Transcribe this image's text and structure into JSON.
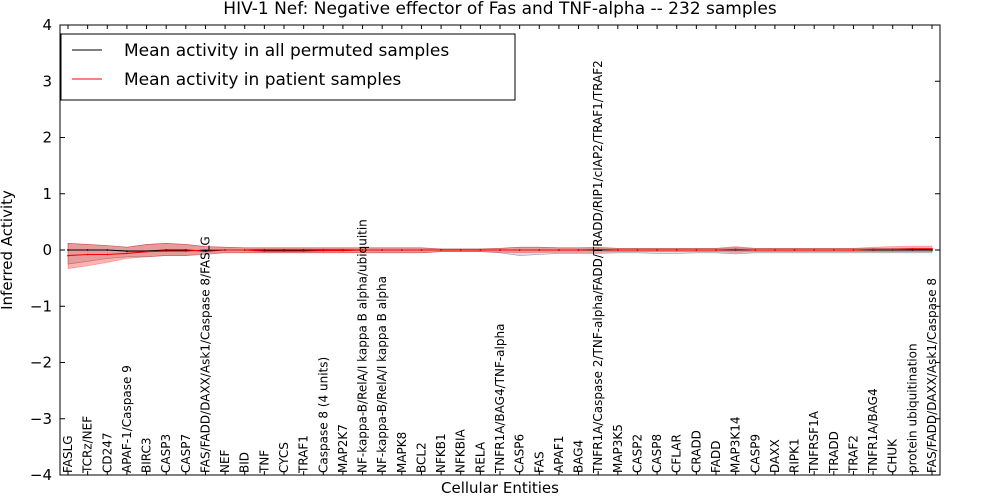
{
  "chart_data": {
    "type": "line",
    "title": "HIV-1 Nef: Negative effector of Fas and TNF-alpha -- 232 samples",
    "xlabel": "Cellular Entities",
    "ylabel": "Inferred Activity",
    "ylim": [
      -4,
      4
    ],
    "yticks": [
      "4",
      "3",
      "2",
      "1",
      "0",
      "−1",
      "−2",
      "−3",
      "−4"
    ],
    "ytick_values": [
      4,
      3,
      2,
      1,
      0,
      -1,
      -2,
      -3,
      -4
    ],
    "grid": false,
    "legend_position": "top-left",
    "categories": [
      "FASLG",
      "TCRz/NEF",
      "CD247",
      "APAF-1/Caspase 9",
      "BIRC3",
      "CASP3",
      "CASP7",
      "FAS/FADD/DAXX/Ask1/Caspase 8/FASLG",
      "NEF",
      "BID",
      "TNF",
      "CYCS",
      "TRAF1",
      "Caspase 8 (4 units)",
      "MAP2K7",
      "NF-kappa-B/RelA/I kappa B alpha/ubiquitin",
      "NF-kappa-B/RelA/I kappa B alpha",
      "MAPK8",
      "BCL2",
      "NFKB1",
      "NFKBIA",
      "RELA",
      "TNFR1A/BAG4/TNF-alpha",
      "CASP6",
      "FAS",
      "APAF1",
      "BAG4",
      "TNFR1A/Caspase 2/TNF-alpha/FADD/TRADD/RIP1/cIAP2/TRAF1/TRAF2",
      "MAP3K5",
      "CASP2",
      "CASP8",
      "CFLAR",
      "CRADD",
      "FADD",
      "MAP3K14",
      "CASP9",
      "DAXX",
      "RIPK1",
      "TNFRSF1A",
      "TRADD",
      "TRAF2",
      "TNFR1A/BAG4",
      "CHUK",
      "protein ubiquitination",
      "FAS/FADD/DAXX/Ask1/Caspase 8"
    ],
    "series": [
      {
        "name": "Mean activity in all permuted samples",
        "color": "#000000",
        "values": [
          0.0,
          0.0,
          0.0,
          -0.02,
          -0.02,
          0.0,
          0.0,
          -0.02,
          0.0,
          0.0,
          0.0,
          0.0,
          0.0,
          0.0,
          0.0,
          0.0,
          0.0,
          0.0,
          0.0,
          0.0,
          0.0,
          0.0,
          0.0,
          0.0,
          0.0,
          0.0,
          0.0,
          0.0,
          0.0,
          0.0,
          0.0,
          0.0,
          0.0,
          0.0,
          0.0,
          0.0,
          0.0,
          0.0,
          0.0,
          0.0,
          0.0,
          0.0,
          0.0,
          0.0,
          0.0
        ],
        "band_upper": [
          0.12,
          0.1,
          0.08,
          0.05,
          0.1,
          0.12,
          0.1,
          0.06,
          0.05,
          0.04,
          0.04,
          0.04,
          0.04,
          0.04,
          0.04,
          0.04,
          0.04,
          0.04,
          0.04,
          0.02,
          0.02,
          0.02,
          0.03,
          0.05,
          0.05,
          0.04,
          0.04,
          0.04,
          0.03,
          0.03,
          0.03,
          0.03,
          0.03,
          0.03,
          0.04,
          0.03,
          0.03,
          0.03,
          0.03,
          0.03,
          0.03,
          0.03,
          0.03,
          0.03,
          0.03
        ],
        "band_lower": [
          -0.25,
          -0.2,
          -0.15,
          -0.12,
          -0.12,
          -0.1,
          -0.1,
          -0.08,
          -0.05,
          -0.05,
          -0.05,
          -0.05,
          -0.05,
          -0.05,
          -0.05,
          -0.05,
          -0.05,
          -0.05,
          -0.05,
          -0.03,
          -0.03,
          -0.03,
          -0.05,
          -0.1,
          -0.08,
          -0.06,
          -0.06,
          -0.06,
          -0.05,
          -0.05,
          -0.06,
          -0.06,
          -0.05,
          -0.05,
          -0.07,
          -0.05,
          -0.05,
          -0.05,
          -0.05,
          -0.05,
          -0.05,
          -0.05,
          -0.05,
          -0.05,
          -0.05
        ]
      },
      {
        "name": "Mean activity in patient samples",
        "color": "#ff0000",
        "values": [
          -0.1,
          -0.08,
          -0.08,
          -0.06,
          -0.03,
          -0.02,
          -0.02,
          0.0,
          0.0,
          0.0,
          -0.02,
          -0.02,
          -0.02,
          -0.01,
          -0.01,
          0.0,
          0.0,
          0.0,
          0.0,
          0.0,
          0.0,
          0.0,
          0.0,
          0.0,
          0.0,
          0.0,
          0.0,
          0.01,
          0.0,
          0.0,
          0.0,
          0.0,
          0.0,
          0.0,
          0.01,
          0.0,
          0.0,
          0.0,
          0.0,
          0.0,
          0.0,
          0.01,
          0.01,
          0.02,
          0.02
        ],
        "band_upper": [
          0.12,
          0.1,
          0.08,
          0.05,
          0.1,
          0.12,
          0.1,
          0.06,
          0.05,
          0.04,
          0.04,
          0.04,
          0.04,
          0.04,
          0.04,
          0.04,
          0.04,
          0.04,
          0.04,
          0.02,
          0.02,
          0.02,
          0.03,
          0.05,
          0.05,
          0.04,
          0.04,
          0.05,
          0.03,
          0.03,
          0.03,
          0.03,
          0.03,
          0.03,
          0.06,
          0.03,
          0.03,
          0.03,
          0.03,
          0.03,
          0.03,
          0.05,
          0.06,
          0.07,
          0.07
        ],
        "band_lower": [
          -0.33,
          -0.28,
          -0.22,
          -0.15,
          -0.12,
          -0.1,
          -0.1,
          -0.06,
          -0.05,
          -0.05,
          -0.05,
          -0.05,
          -0.05,
          -0.05,
          -0.05,
          -0.05,
          -0.05,
          -0.05,
          -0.05,
          -0.03,
          -0.03,
          -0.03,
          -0.04,
          -0.05,
          -0.04,
          -0.04,
          -0.04,
          -0.04,
          -0.03,
          -0.03,
          -0.03,
          -0.03,
          -0.03,
          -0.03,
          -0.04,
          -0.03,
          -0.03,
          -0.03,
          -0.03,
          -0.03,
          -0.03,
          -0.03,
          -0.03,
          -0.03,
          -0.03
        ]
      }
    ]
  }
}
